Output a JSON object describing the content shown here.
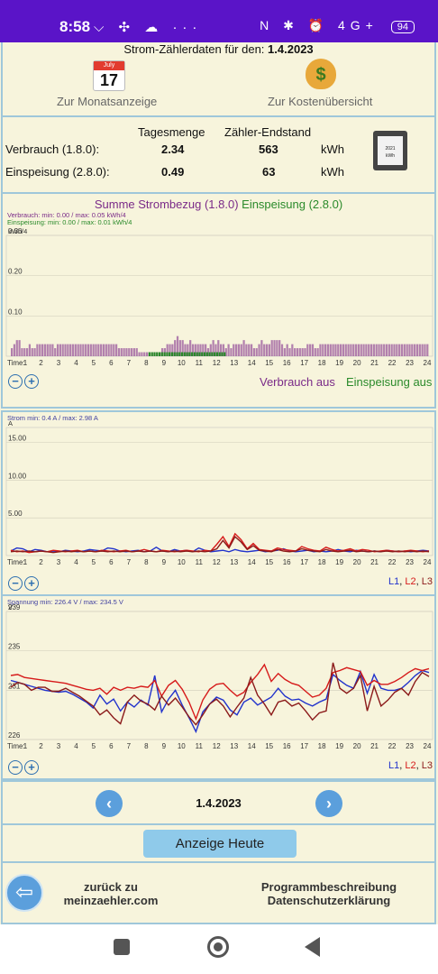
{
  "status_bar": {
    "time": "8:58",
    "left_icons": "⌵ ✣ ☁ ···",
    "right_icons": "N ✱ ⏰ 4G+",
    "battery": "94"
  },
  "header": {
    "title_prefix": "Strom-Zählerdaten für den: ",
    "date": "1.4.2023"
  },
  "calendar_icon": {
    "month": "July",
    "day": "17"
  },
  "links": {
    "month": "Zur Monatsanzeige",
    "costs": "Zur Kostenübersicht"
  },
  "summary": {
    "col_day": "Tagesmenge",
    "col_meter": "Zähler-Endstand",
    "rows": [
      {
        "label": "Verbrauch (1.8.0):",
        "day": "2.34",
        "meter": "563",
        "unit": "kWh"
      },
      {
        "label": "Einspeisung (2.8.0):",
        "day": "0.49",
        "meter": "63",
        "unit": "kWh"
      }
    ],
    "meter_icon_year": "2021",
    "meter_icon_unit": "kWh"
  },
  "energy_section": {
    "title_consumption": "Summe Strombezug (1.8.0)",
    "title_feed": " Einspeisung (2.8.0)"
  },
  "toggles": {
    "consumption_off": "Verbrauch aus",
    "feed_off": "Einspeisung aus"
  },
  "phase_labels": {
    "l1": "L1",
    "l2": "L2",
    "l3": "L3",
    "sep": ", "
  },
  "colors": {
    "consumption": "#9b5a9e",
    "feed": "#2a8a2a",
    "l1": "#2233cc",
    "l2": "#d61a1a",
    "l3": "#8b1a1a"
  },
  "chart_data": [
    {
      "type": "bar",
      "info_lines": [
        "Verbrauch: min: 0.00 / max: 0.05 kWh/4",
        "Einspeisung: min: 0.00 / max: 0.01 kWh/4"
      ],
      "ylabel": "kWh/4",
      "ylim": [
        0,
        0.3
      ],
      "yticks": [
        0.1,
        0.2,
        0.3
      ],
      "ytick_labels": [
        "0.10",
        "0.20",
        "0.30"
      ],
      "xlabel": "Time:",
      "x_ticks": [
        "1",
        "2",
        "3",
        "4",
        "5",
        "6",
        "7",
        "8",
        "9",
        "10",
        "11",
        "12",
        "13",
        "14",
        "15",
        "16",
        "17",
        "18",
        "19",
        "20",
        "21",
        "22",
        "23",
        "24"
      ],
      "series": [
        {
          "name": "Verbrauch",
          "values": [
            0.02,
            0.03,
            0.04,
            0.04,
            0.02,
            0.02,
            0.02,
            0.03,
            0.02,
            0.02,
            0.03,
            0.03,
            0.03,
            0.03,
            0.03,
            0.03,
            0.03,
            0.02,
            0.03,
            0.03,
            0.03,
            0.03,
            0.03,
            0.03,
            0.03,
            0.03,
            0.03,
            0.03,
            0.03,
            0.03,
            0.03,
            0.03,
            0.03,
            0.03,
            0.03,
            0.03,
            0.03,
            0.03,
            0.03,
            0.03,
            0.03,
            0.03,
            0.02,
            0.02,
            0.02,
            0.02,
            0.02,
            0.02,
            0.02,
            0.02,
            0.01,
            0.01,
            0.01,
            0.01,
            0.01,
            0.01,
            0.01,
            0.01,
            0.01,
            0.02,
            0.02,
            0.03,
            0.03,
            0.03,
            0.04,
            0.05,
            0.04,
            0.04,
            0.03,
            0.03,
            0.04,
            0.03,
            0.03,
            0.03,
            0.03,
            0.03,
            0.03,
            0.02,
            0.03,
            0.04,
            0.03,
            0.04,
            0.03,
            0.03,
            0.02,
            0.03,
            0.02,
            0.03,
            0.03,
            0.03,
            0.03,
            0.04,
            0.03,
            0.03,
            0.03,
            0.02,
            0.02,
            0.03,
            0.04,
            0.03,
            0.03,
            0.03,
            0.04,
            0.04,
            0.04,
            0.04,
            0.03,
            0.02,
            0.03,
            0.02,
            0.03,
            0.02,
            0.02,
            0.02,
            0.02,
            0.02,
            0.03,
            0.03,
            0.03,
            0.02,
            0.02,
            0.03,
            0.03,
            0.03,
            0.03,
            0.03,
            0.03,
            0.03,
            0.03,
            0.03,
            0.03,
            0.03,
            0.03,
            0.03,
            0.03,
            0.03,
            0.03,
            0.03,
            0.03,
            0.03,
            0.03,
            0.03,
            0.03,
            0.03,
            0.03,
            0.03,
            0.03,
            0.03,
            0.03,
            0.03,
            0.03,
            0.03,
            0.03,
            0.03,
            0.03,
            0.03,
            0.03,
            0.03,
            0.03,
            0.03,
            0.03,
            0.03,
            0.03,
            0.03
          ]
        },
        {
          "name": "Einspeisung",
          "values": [
            0,
            0,
            0,
            0,
            0,
            0,
            0,
            0,
            0,
            0,
            0,
            0,
            0,
            0,
            0,
            0,
            0,
            0,
            0,
            0,
            0,
            0,
            0,
            0,
            0,
            0,
            0,
            0,
            0,
            0,
            0,
            0,
            0,
            0,
            0,
            0,
            0,
            0,
            0,
            0,
            0,
            0,
            0,
            0,
            0,
            0,
            0,
            0,
            0,
            0,
            0,
            0,
            0,
            0,
            0,
            0.01,
            0.01,
            0.01,
            0.01,
            0.01,
            0.01,
            0.01,
            0.01,
            0.01,
            0.01,
            0.01,
            0.01,
            0.01,
            0.01,
            0.01,
            0.01,
            0.01,
            0.01,
            0.01,
            0.01,
            0.01,
            0.01,
            0.01,
            0.01,
            0.01,
            0.01,
            0.01,
            0.01,
            0.01,
            0.01,
            0.01,
            0,
            0,
            0,
            0,
            0,
            0,
            0,
            0,
            0,
            0,
            0,
            0,
            0,
            0,
            0,
            0,
            0,
            0,
            0,
            0,
            0,
            0,
            0,
            0,
            0,
            0,
            0,
            0,
            0,
            0,
            0,
            0,
            0,
            0,
            0,
            0,
            0,
            0,
            0,
            0,
            0,
            0,
            0,
            0,
            0,
            0,
            0,
            0,
            0,
            0,
            0,
            0,
            0,
            0,
            0,
            0,
            0,
            0,
            0,
            0,
            0,
            0,
            0,
            0,
            0,
            0,
            0,
            0,
            0,
            0,
            0,
            0,
            0,
            0,
            0,
            0,
            0,
            0,
            0,
            0,
            0
          ]
        }
      ]
    },
    {
      "type": "line",
      "info_lines": [
        "Strom min: 0.4 A / max: 2.98 A"
      ],
      "ylabel": "A",
      "ylim": [
        0,
        17
      ],
      "yticks": [
        5,
        10,
        15
      ],
      "ytick_labels": [
        "5.00",
        "10.00",
        "15.00"
      ],
      "xlabel": "Time:",
      "x_ticks": [
        "1",
        "2",
        "3",
        "4",
        "5",
        "6",
        "7",
        "8",
        "9",
        "10",
        "11",
        "12",
        "13",
        "14",
        "15",
        "16",
        "17",
        "18",
        "19",
        "20",
        "21",
        "22",
        "23",
        "24"
      ],
      "series": [
        {
          "name": "L1",
          "values": [
            0.6,
            1.0,
            0.9,
            0.5,
            0.8,
            0.7,
            0.5,
            0.6,
            0.5,
            0.7,
            0.6,
            0.5,
            0.6,
            0.8,
            0.7,
            0.6,
            1.0,
            0.9,
            0.6,
            0.5,
            0.6,
            0.7,
            0.5,
            0.6,
            1.1,
            0.6,
            0.5,
            0.8,
            0.6,
            0.7,
            0.5,
            1.0,
            0.7,
            0.5,
            0.6,
            0.7,
            0.5,
            0.8,
            0.6,
            0.5,
            0.6,
            0.7,
            0.5,
            0.6,
            0.7,
            0.9,
            0.6,
            0.5,
            0.6,
            0.7,
            0.5,
            0.6,
            0.5,
            0.6,
            0.8,
            0.6,
            0.5,
            0.7,
            0.6,
            0.5,
            0.6,
            0.5,
            0.7,
            0.6,
            0.5,
            0.6,
            0.5,
            0.6,
            0.7,
            0.6
          ]
        },
        {
          "name": "L2",
          "values": [
            0.7,
            0.5,
            0.6,
            0.4,
            0.5,
            0.6,
            0.5,
            0.7,
            0.6,
            0.5,
            0.6,
            0.7,
            0.5,
            0.6,
            0.5,
            0.7,
            0.6,
            0.5,
            0.6,
            0.7,
            0.5,
            0.6,
            0.8,
            0.6,
            0.5,
            0.7,
            0.6,
            0.5,
            0.6,
            0.7,
            0.6,
            0.5,
            0.7,
            0.6,
            1.5,
            2.5,
            1.2,
            2.9,
            2.1,
            0.9,
            1.6,
            0.8,
            0.7,
            0.6,
            1.0,
            0.8,
            0.7,
            0.6,
            1.2,
            0.9,
            0.7,
            0.6,
            1.1,
            0.8,
            0.6,
            0.7,
            0.9,
            0.6,
            0.8,
            0.7,
            0.5,
            0.6,
            0.7,
            0.6,
            0.5,
            0.6,
            0.7,
            0.6,
            0.5,
            0.6
          ]
        },
        {
          "name": "L3",
          "values": [
            0.5,
            0.6,
            0.5,
            0.6,
            0.5,
            0.6,
            0.5,
            0.4,
            0.5,
            0.6,
            0.5,
            0.6,
            0.5,
            0.6,
            0.5,
            0.6,
            0.5,
            0.6,
            0.5,
            0.6,
            0.5,
            0.6,
            0.5,
            0.6,
            0.5,
            0.6,
            0.5,
            0.6,
            0.5,
            0.6,
            0.5,
            0.6,
            0.5,
            0.6,
            0.9,
            2.0,
            1.0,
            2.5,
            1.8,
            0.8,
            1.3,
            0.7,
            0.6,
            0.5,
            0.8,
            0.6,
            0.5,
            0.6,
            0.9,
            0.7,
            0.6,
            0.5,
            0.8,
            0.6,
            0.5,
            0.6,
            0.7,
            0.5,
            0.6,
            0.5,
            0.6,
            0.5,
            0.6,
            0.5,
            0.6,
            0.5,
            0.6,
            0.5,
            0.6,
            0.5
          ]
        }
      ]
    },
    {
      "type": "line",
      "info_lines": [
        "Spannung min: 226.4 V / max: 234.5 V"
      ],
      "ylabel": "V",
      "ylim": [
        226,
        239
      ],
      "yticks": [
        226,
        231,
        235,
        239
      ],
      "ytick_labels": [
        "226",
        "231",
        "235",
        "239"
      ],
      "xlabel": "Time:",
      "x_ticks": [
        "1",
        "2",
        "3",
        "4",
        "5",
        "6",
        "7",
        "8",
        "9",
        "10",
        "11",
        "12",
        "13",
        "14",
        "15",
        "16",
        "17",
        "18",
        "19",
        "20",
        "21",
        "22",
        "23",
        "24"
      ],
      "series": [
        {
          "name": "L1",
          "values": [
            232.0,
            231.8,
            231.6,
            231.4,
            231.2,
            231.0,
            230.9,
            230.8,
            230.9,
            230.6,
            230.2,
            229.8,
            229.2,
            230.5,
            229.6,
            230.1,
            228.9,
            229.8,
            229.3,
            230.0,
            229.5,
            232.5,
            228.8,
            230.1,
            231.0,
            229.5,
            228.2,
            226.8,
            228.8,
            229.6,
            230.3,
            230.0,
            229.0,
            228.5,
            229.8,
            230.2,
            229.5,
            229.9,
            230.3,
            231.2,
            230.4,
            230.0,
            230.1,
            229.7,
            229.4,
            229.8,
            230.1,
            232.6,
            232.0,
            231.5,
            231.2,
            232.9,
            230.7,
            232.6,
            231.2,
            231.0,
            231.0,
            231.2,
            231.8,
            232.5,
            233.0,
            232.8
          ]
        },
        {
          "name": "L2",
          "values": [
            232.5,
            232.6,
            232.3,
            232.2,
            232.1,
            232.0,
            231.9,
            231.8,
            231.7,
            231.5,
            231.3,
            231.1,
            231.0,
            231.2,
            230.6,
            231.3,
            231.0,
            231.3,
            231.2,
            231.4,
            231.3,
            232.0,
            230.4,
            231.5,
            232.0,
            231.1,
            229.8,
            228.1,
            230.0,
            231.1,
            231.6,
            231.7,
            231.0,
            230.4,
            230.8,
            231.8,
            232.6,
            233.6,
            231.9,
            232.7,
            232.1,
            231.7,
            231.5,
            230.9,
            230.3,
            230.5,
            231.2,
            232.8,
            233.0,
            233.3,
            233.1,
            232.9,
            231.5,
            232.0,
            231.6,
            231.6,
            231.9,
            232.3,
            232.8,
            233.2,
            233.0,
            233.2
          ]
        },
        {
          "name": "L3",
          "values": [
            231.3,
            231.8,
            231.6,
            231.0,
            231.3,
            231.3,
            230.9,
            230.9,
            231.2,
            230.8,
            230.4,
            229.9,
            229.4,
            228.5,
            229.0,
            228.2,
            227.6,
            229.8,
            230.5,
            229.9,
            229.6,
            229.0,
            230.4,
            229.5,
            230.2,
            229.3,
            228.3,
            227.5,
            228.5,
            229.6,
            230.1,
            229.4,
            228.3,
            229.3,
            230.2,
            232.3,
            230.5,
            229.6,
            228.5,
            229.8,
            230.0,
            229.4,
            229.7,
            228.9,
            228.0,
            228.7,
            228.9,
            233.8,
            231.2,
            230.7,
            231.2,
            232.5,
            228.9,
            231.4,
            229.4,
            230.0,
            230.8,
            231.2,
            230.5,
            231.9,
            232.8,
            232.4
          ]
        }
      ]
    }
  ],
  "date_nav": {
    "date": "1.4.2023",
    "prev": "‹",
    "next": "›"
  },
  "buttons": {
    "today": "Anzeige Heute"
  },
  "footer": {
    "back_line1": "zurück zu",
    "back_line2": "meinzaehler.com",
    "desc_line1": "Programmbeschreibung",
    "desc_line2": "Datenschutzerklärung"
  }
}
